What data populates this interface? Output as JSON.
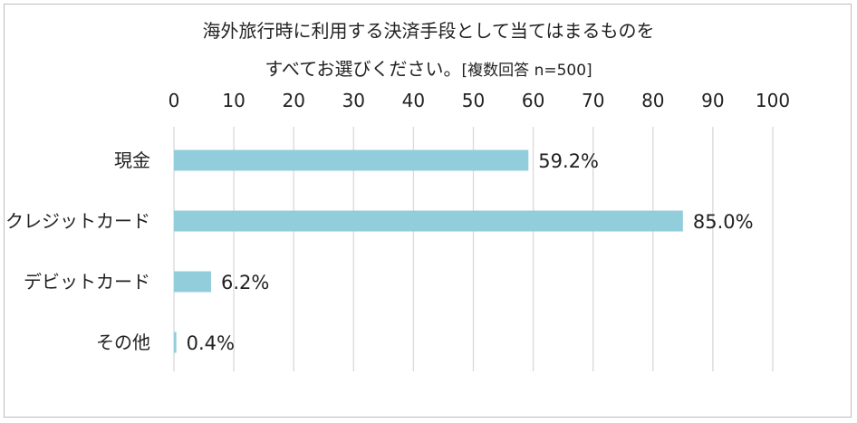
{
  "chart_data": {
    "type": "bar",
    "orientation": "horizontal",
    "title_line1": "海外旅行時に利用する決済手段として当てはまるものを",
    "title_line2": "すべてお選びください。",
    "title_note": "[複数回答 n=500]",
    "categories": [
      "現金",
      "クレジットカード",
      "デビットカード",
      "その他"
    ],
    "values": [
      59.2,
      85.0,
      6.2,
      0.4
    ],
    "value_labels": [
      "59.2%",
      "85.0%",
      "6.2%",
      "0.4%"
    ],
    "xlim": [
      0,
      100
    ],
    "ticks": [
      "0",
      "10",
      "20",
      "30",
      "40",
      "50",
      "60",
      "70",
      "80",
      "90",
      "100"
    ],
    "tick_values": [
      0,
      10,
      20,
      30,
      40,
      50,
      60,
      70,
      80,
      90,
      100
    ],
    "axis_position": "top",
    "grid": true,
    "colors": {
      "bar": "#92CDDC",
      "grid": "#D9D9D9",
      "border": "#BDBDBD"
    }
  }
}
